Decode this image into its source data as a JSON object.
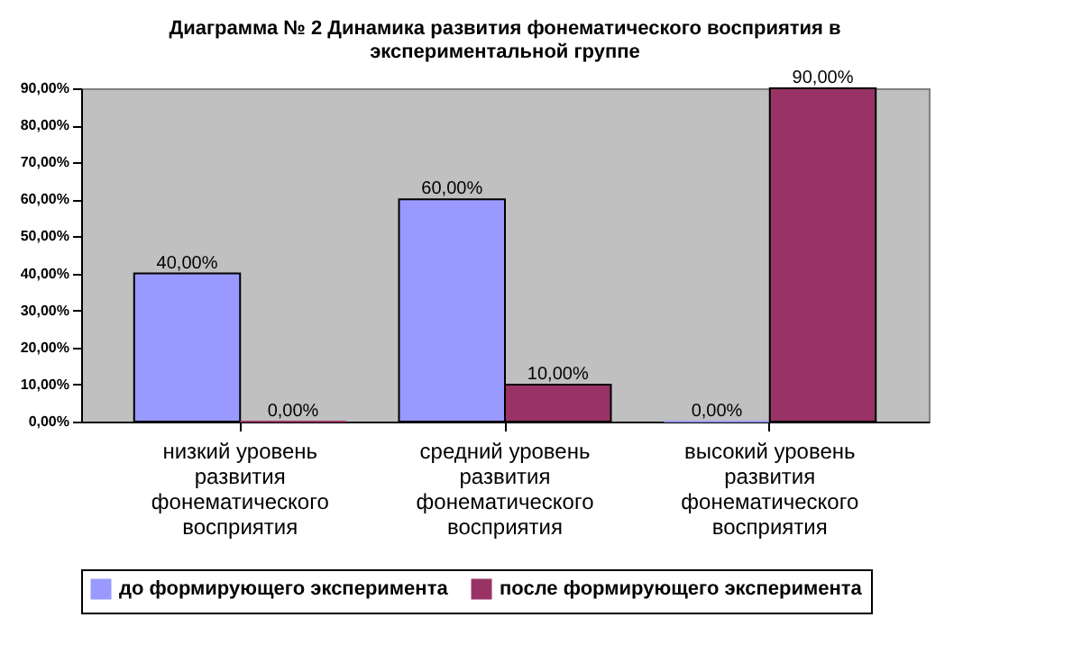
{
  "chart_data": {
    "type": "bar",
    "title": "Диаграмма № 2 Динамика развития фонематического восприятия в экспериментальной группе",
    "categories": [
      "низкий уровень развития фонематического восприятия",
      "средний уровень развития фонематического восприятия",
      "высокий уровень развития фонематического восприятия"
    ],
    "series": [
      {
        "name": "до формирующего эксперимента",
        "color": "#9999ff",
        "values": [
          40,
          60,
          0
        ],
        "value_labels": [
          "40,00%",
          "60,00%",
          "0,00%"
        ]
      },
      {
        "name": "после формирующего эксперимента",
        "color": "#993366",
        "values": [
          0,
          10,
          90
        ],
        "value_labels": [
          "0,00%",
          "10,00%",
          "90,00%"
        ]
      }
    ],
    "ylim": [
      0,
      90
    ],
    "yticks": [
      {
        "value": 0,
        "label": "0,00%"
      },
      {
        "value": 10,
        "label": "10,00%"
      },
      {
        "value": 20,
        "label": "20,00%"
      },
      {
        "value": 30,
        "label": "30,00%"
      },
      {
        "value": 40,
        "label": "40,00%"
      },
      {
        "value": 50,
        "label": "50,00%"
      },
      {
        "value": 60,
        "label": "60,00%"
      },
      {
        "value": 70,
        "label": "70,00%"
      },
      {
        "value": 80,
        "label": "80,00%"
      },
      {
        "value": 90,
        "label": "90,00%"
      }
    ],
    "grid": false,
    "legend": "bottom"
  }
}
